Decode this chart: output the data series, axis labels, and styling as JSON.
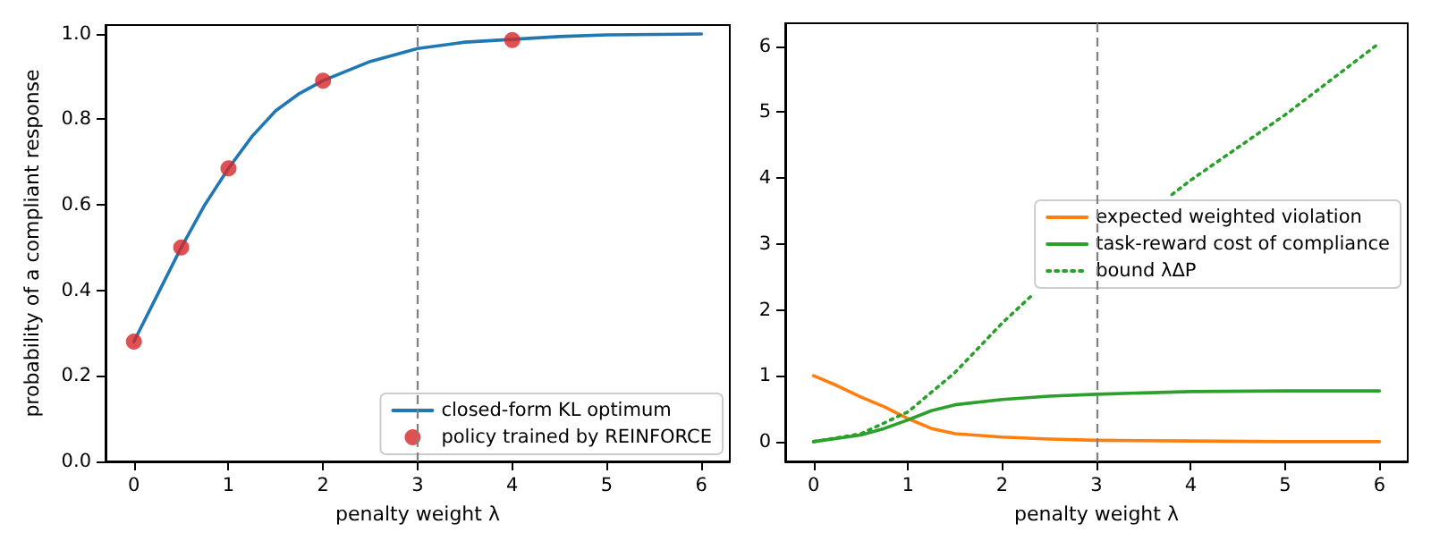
{
  "chart_data": [
    {
      "type": "line",
      "xlabel": "penalty weight λ",
      "ylabel": "probability of a compliant response",
      "xlim": [
        -0.3,
        6.3
      ],
      "xticks": [
        0,
        1,
        2,
        3,
        4,
        5,
        6
      ],
      "ylim": [
        0,
        1.02
      ],
      "yticks": [
        {
          "value": 0,
          "label": "0.0"
        },
        0.2,
        0.4,
        0.6,
        0.8,
        {
          "value": 1,
          "label": "1.0"
        }
      ],
      "legend": "bottom right",
      "ref_lines": [
        {
          "axis": "x",
          "value": 3,
          "color": "#808080",
          "line_style": "dashed"
        }
      ],
      "series": [
        {
          "name": "closed-form KL optimum",
          "type": "line",
          "color": "#1f77b4",
          "x": [
            0,
            0.25,
            0.5,
            0.75,
            1,
            1.25,
            1.5,
            1.75,
            2,
            2.5,
            3,
            3.5,
            4.5,
            5,
            6
          ],
          "values": [
            0.28,
            0.39,
            0.5,
            0.6,
            0.685,
            0.76,
            0.82,
            0.86,
            0.89,
            0.935,
            0.965,
            0.98,
            0.993,
            0.997,
            0.999
          ]
        },
        {
          "name": "policy trained by REINFORCE",
          "type": "scatter",
          "marker": "circle",
          "color": "#d62728",
          "x": [
            0,
            0.5,
            1,
            2,
            4
          ],
          "values": [
            0.28,
            0.5,
            0.685,
            0.89,
            0.985
          ]
        }
      ]
    },
    {
      "type": "line",
      "xlabel": "penalty weight λ",
      "xlim": [
        -0.3,
        6.3
      ],
      "xticks": [
        0,
        1,
        2,
        3,
        4,
        5,
        6
      ],
      "ylim": [
        -0.3,
        6.35
      ],
      "yticks": [
        0,
        1,
        2,
        3,
        4,
        5,
        6
      ],
      "legend": "right",
      "ref_lines": [
        {
          "axis": "x",
          "value": 3,
          "color": "#808080",
          "line_style": "dashed"
        }
      ],
      "series": [
        {
          "name": "expected weighted violation",
          "type": "line",
          "color": "#ff7f0e",
          "x": [
            0,
            0.25,
            0.5,
            0.75,
            1,
            1.25,
            1.5,
            2,
            2.5,
            3,
            4,
            5,
            6
          ],
          "values": [
            1,
            0.85,
            0.68,
            0.53,
            0.35,
            0.2,
            0.12,
            0.07,
            0.04,
            0.02,
            0.01,
            0,
            0
          ]
        },
        {
          "name": "task-reward cost of compliance",
          "type": "line",
          "color": "#2ca02c",
          "x": [
            0,
            0.5,
            0.75,
            1,
            1.25,
            1.5,
            2,
            2.5,
            3,
            4,
            5,
            6
          ],
          "values": [
            0,
            0.1,
            0.2,
            0.33,
            0.47,
            0.56,
            0.64,
            0.69,
            0.72,
            0.76,
            0.77,
            0.77
          ]
        },
        {
          "name": "bound λΔP",
          "type": "line",
          "line_style": "dotted",
          "color": "#2ca02c",
          "x": [
            0,
            0.5,
            1,
            1.5,
            2,
            2.3,
            3,
            3.5,
            3.8,
            4,
            5,
            6
          ],
          "values": [
            0,
            0.12,
            0.45,
            1.05,
            1.8,
            2.2,
            null,
            null,
            3.75,
            3.97,
            4.96,
            6.05
          ]
        }
      ]
    }
  ]
}
